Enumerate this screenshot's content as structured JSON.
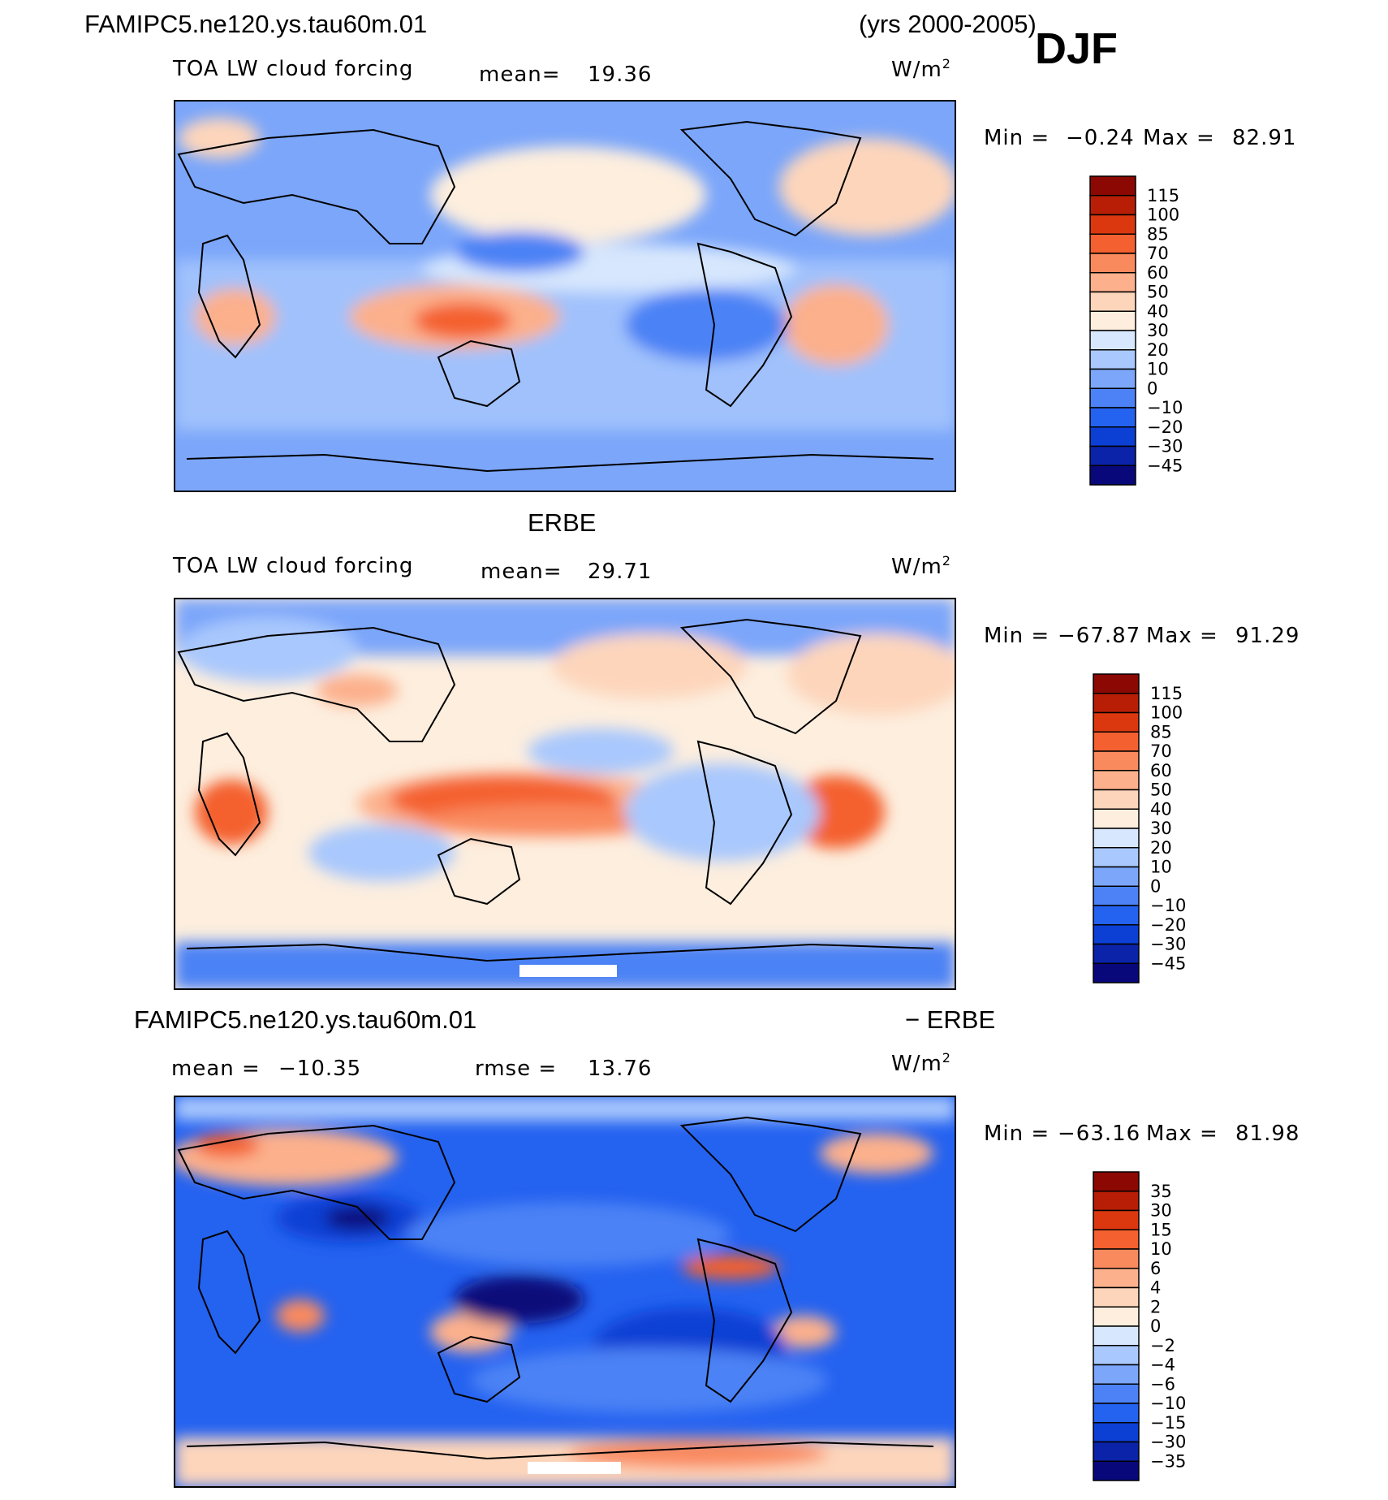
{
  "header": {
    "case_title": "FAMIPC5.ne120.ys.tau60m.01",
    "years": "(yrs 2000-2005)",
    "season": "DJF"
  },
  "palettes": {
    "main": [
      "#08087a",
      "#0a23a8",
      "#0c3fd4",
      "#2462f0",
      "#4c82f5",
      "#7ba6fa",
      "#a9c8fd",
      "#d7e7fd",
      "#fdeede",
      "#fdd5bb",
      "#fcb08c",
      "#f98a5e",
      "#f4602f",
      "#dc3810",
      "#b81e06",
      "#8c0803"
    ],
    "diff": [
      "#08087a",
      "#0a23a8",
      "#0c3fd4",
      "#2462f0",
      "#4c82f5",
      "#7ba6fa",
      "#a9c8fd",
      "#d7e7fd",
      "#fdeede",
      "#fdd5bb",
      "#fcb08c",
      "#f98a5e",
      "#f4602f",
      "#dc3810",
      "#b81e06",
      "#8c0803"
    ]
  },
  "chart_data": [
    {
      "type": "heatmap",
      "name": "model",
      "title": "",
      "variable": "TOA LW cloud forcing",
      "mean_label": "mean=",
      "mean": "19.36",
      "units": "W/m",
      "units_sup": "2",
      "min_label": "Min =",
      "min": "-0.24",
      "max_label": "Max =",
      "max": "82.91",
      "levels": [
        "115",
        "100",
        "85",
        "70",
        "60",
        "50",
        "40",
        "30",
        "20",
        "10",
        "0",
        "-10",
        "-20",
        "-30",
        "-45"
      ]
    },
    {
      "type": "heatmap",
      "name": "obs",
      "title": "ERBE",
      "variable": "TOA LW cloud forcing",
      "mean_label": "mean=",
      "mean": "29.71",
      "units": "W/m",
      "units_sup": "2",
      "min_label": "Min =",
      "min": "-67.87",
      "max_label": "Max =",
      "max": "91.29",
      "levels": [
        "115",
        "100",
        "85",
        "70",
        "60",
        "50",
        "40",
        "30",
        "20",
        "10",
        "0",
        "-10",
        "-20",
        "-30",
        "-45"
      ]
    },
    {
      "type": "heatmap",
      "name": "diff",
      "title_left": "FAMIPC5.ne120.ys.tau60m.01",
      "title_right": "- ERBE",
      "mean_label": "mean =",
      "mean": "-10.35",
      "rmse_label": "rmse =",
      "rmse": "13.76",
      "units": "W/m",
      "units_sup": "2",
      "min_label": "Min =",
      "min": "-63.16",
      "max_label": "Max =",
      "max": "81.98",
      "levels": [
        "35",
        "30",
        "15",
        "10",
        "6",
        "4",
        "2",
        "0",
        "-2",
        "-4",
        "-6",
        "-10",
        "-15",
        "-30",
        "-35"
      ]
    }
  ]
}
